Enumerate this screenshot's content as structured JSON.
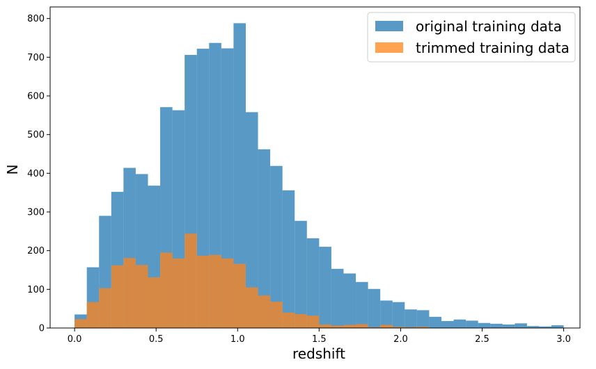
{
  "chart_data": {
    "type": "bar",
    "title": "",
    "xlabel": "redshift",
    "ylabel": "N",
    "xlim": [
      -0.15,
      3.1
    ],
    "ylim": [
      0,
      830
    ],
    "grid": false,
    "legend_position": "top-right",
    "bin_start": 0.0,
    "bin_width": 0.075,
    "x_ticks": [
      0.0,
      0.5,
      1.0,
      1.5,
      2.0,
      2.5,
      3.0
    ],
    "x_tick_labels": [
      "0.0",
      "0.5",
      "1.0",
      "1.5",
      "2.0",
      "2.5",
      "3.0"
    ],
    "y_ticks": [
      0,
      100,
      200,
      300,
      400,
      500,
      600,
      700,
      800
    ],
    "y_tick_labels": [
      "0",
      "100",
      "200",
      "300",
      "400",
      "500",
      "600",
      "700",
      "800"
    ],
    "series": [
      {
        "name": "original training data",
        "color": "#2e80b8",
        "opacity": 0.8,
        "values": [
          35,
          157,
          290,
          352,
          414,
          398,
          368,
          571,
          563,
          706,
          722,
          737,
          723,
          788,
          558,
          462,
          419,
          356,
          277,
          232,
          210,
          153,
          141,
          119,
          101,
          71,
          67,
          48,
          46,
          29,
          18,
          22,
          19,
          13,
          11,
          9,
          12,
          5,
          4,
          7
        ]
      },
      {
        "name": "trimmed training data",
        "color": "#ff8418",
        "opacity": 0.75,
        "values": [
          23,
          67,
          103,
          162,
          181,
          163,
          131,
          195,
          180,
          244,
          187,
          189,
          180,
          166,
          105,
          84,
          68,
          40,
          36,
          32,
          9,
          6,
          8,
          10,
          2,
          8,
          3,
          2,
          3,
          0,
          0,
          0,
          0,
          0,
          0,
          0,
          0,
          0,
          0,
          0
        ]
      }
    ]
  }
}
